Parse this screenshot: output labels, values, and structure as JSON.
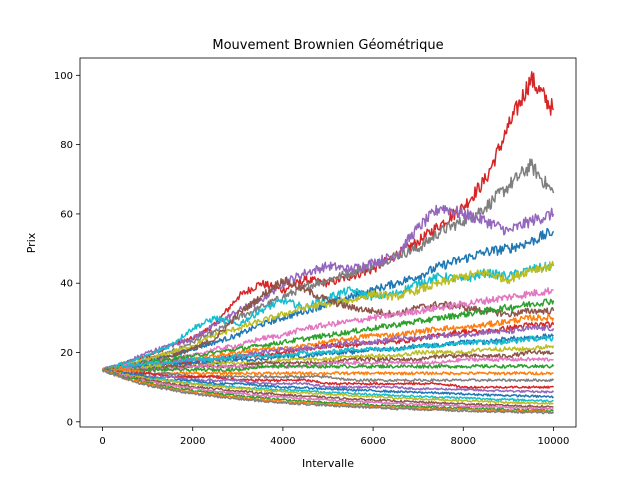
{
  "chart_data": {
    "type": "line",
    "title": "Mouvement Brownien Géométrique",
    "xlabel": "Intervalle",
    "ylabel": "Prix",
    "xlim": [
      -500,
      10500
    ],
    "ylim": [
      -1.5,
      105
    ],
    "grid": false,
    "legend": "none",
    "x_ticks": [
      0,
      2000,
      4000,
      6000,
      8000,
      10000
    ],
    "y_ticks": [
      0,
      20,
      40,
      60,
      80,
      100
    ],
    "x_tick_labels": [
      "0",
      "2000",
      "4000",
      "6000",
      "8000",
      "10000"
    ],
    "y_tick_labels": [
      "0",
      "20",
      "40",
      "60",
      "80",
      "100"
    ],
    "x": [
      0,
      500,
      1000,
      1500,
      2000,
      2500,
      3000,
      3500,
      4000,
      4500,
      5000,
      5500,
      6000,
      6500,
      7000,
      7500,
      8000,
      8500,
      9000,
      9500,
      10000
    ],
    "series": [
      {
        "color": "#d62728",
        "values": [
          15,
          17,
          19,
          22,
          24,
          28,
          36,
          40,
          38,
          41,
          40,
          42,
          44,
          48,
          52,
          57,
          62,
          70,
          85,
          99,
          90
        ]
      },
      {
        "color": "#7f7f7f",
        "values": [
          15,
          16,
          18,
          20,
          23,
          26,
          30,
          33,
          36,
          39,
          41,
          43,
          45,
          48,
          50,
          55,
          58,
          62,
          68,
          74,
          66
        ]
      },
      {
        "color": "#9467bd",
        "values": [
          15,
          17,
          20,
          22,
          24,
          28,
          32,
          35,
          40,
          43,
          45,
          44,
          46,
          48,
          56,
          62,
          60,
          58,
          55,
          58,
          60
        ]
      },
      {
        "color": "#1f77b4",
        "values": [
          15,
          16,
          18,
          19,
          21,
          23,
          25,
          28,
          30,
          32,
          34,
          36,
          38,
          40,
          42,
          45,
          47,
          49,
          50,
          52,
          55
        ]
      },
      {
        "color": "#17becf",
        "values": [
          15,
          17,
          19,
          22,
          27,
          30,
          28,
          32,
          35,
          33,
          36,
          38,
          36,
          37,
          40,
          42,
          41,
          43,
          42,
          44,
          45
        ]
      },
      {
        "color": "#bcbd22",
        "values": [
          15,
          16,
          18,
          20,
          22,
          25,
          27,
          29,
          31,
          33,
          34,
          35,
          37,
          36,
          38,
          40,
          42,
          43,
          41,
          44,
          45
        ]
      },
      {
        "color": "#8c564b",
        "values": [
          15,
          16,
          17,
          19,
          21,
          24,
          31,
          36,
          41,
          38,
          35,
          33,
          32,
          31,
          33,
          34,
          33,
          32,
          31,
          32,
          32
        ]
      },
      {
        "color": "#e377c2",
        "values": [
          15,
          16,
          17,
          18,
          19,
          21,
          22,
          24,
          25,
          27,
          28,
          29,
          30,
          31,
          32,
          33,
          34,
          35,
          36,
          37,
          38
        ]
      },
      {
        "color": "#2ca02c",
        "values": [
          15,
          16,
          17,
          18,
          19,
          20,
          21,
          22,
          23,
          24,
          25,
          26,
          27,
          28,
          29,
          30,
          31,
          32,
          33,
          34,
          35
        ]
      },
      {
        "color": "#ff7f0e",
        "values": [
          15,
          16,
          16,
          17,
          18,
          19,
          20,
          21,
          21,
          22,
          23,
          24,
          25,
          25,
          26,
          27,
          27,
          28,
          29,
          30,
          30
        ]
      },
      {
        "color": "#d62728",
        "values": [
          15,
          15,
          16,
          17,
          17,
          18,
          19,
          19,
          20,
          21,
          22,
          22,
          23,
          23,
          24,
          25,
          26,
          26,
          27,
          28,
          28
        ]
      },
      {
        "color": "#9467bd",
        "values": [
          15,
          16,
          16,
          17,
          18,
          18,
          19,
          20,
          21,
          21,
          22,
          23,
          23,
          24,
          24,
          25,
          25,
          26,
          26,
          27,
          27
        ]
      },
      {
        "color": "#1f77b4",
        "values": [
          15,
          15,
          16,
          16,
          17,
          17,
          18,
          18,
          19,
          19,
          20,
          20,
          21,
          21,
          22,
          22,
          23,
          23,
          24,
          24,
          25
        ]
      },
      {
        "color": "#17becf",
        "values": [
          15,
          16,
          17,
          17,
          18,
          18,
          19,
          19,
          19,
          20,
          20,
          21,
          21,
          21,
          22,
          22,
          23,
          23,
          23,
          24,
          24
        ]
      },
      {
        "color": "#bcbd22",
        "values": [
          15,
          15,
          16,
          16,
          16,
          17,
          17,
          17,
          18,
          18,
          18,
          19,
          19,
          19,
          20,
          20,
          20,
          21,
          21,
          21,
          22
        ]
      },
      {
        "color": "#8c564b",
        "values": [
          15,
          15,
          15,
          16,
          16,
          16,
          16,
          17,
          17,
          17,
          17,
          18,
          18,
          18,
          18,
          19,
          19,
          19,
          19,
          20,
          20
        ]
      },
      {
        "color": "#e377c2",
        "values": [
          15,
          15,
          15,
          15,
          16,
          16,
          16,
          16,
          16,
          16,
          17,
          17,
          17,
          17,
          17,
          17,
          18,
          18,
          18,
          18,
          18
        ]
      },
      {
        "color": "#2ca02c",
        "values": [
          15,
          15,
          15,
          15,
          15,
          15,
          15,
          16,
          16,
          16,
          16,
          16,
          16,
          16,
          16,
          16,
          16,
          16,
          16,
          16,
          16
        ]
      },
      {
        "color": "#ff7f0e",
        "values": [
          15,
          15,
          14,
          14,
          14,
          14,
          14,
          14,
          14,
          14,
          14,
          14,
          14,
          14,
          14,
          14,
          14,
          14,
          14,
          14,
          14
        ]
      },
      {
        "color": "#7f7f7f",
        "values": [
          15,
          14,
          14,
          14,
          13,
          13,
          13,
          13,
          13,
          13,
          13,
          12,
          12,
          12,
          12,
          12,
          12,
          12,
          12,
          12,
          12
        ]
      },
      {
        "color": "#d62728",
        "values": [
          15,
          14,
          14,
          13,
          13,
          13,
          12,
          12,
          12,
          12,
          11,
          11,
          11,
          11,
          11,
          11,
          10,
          10,
          10,
          10,
          10
        ]
      },
      {
        "color": "#9467bd",
        "values": [
          15,
          14,
          13,
          13,
          12,
          12,
          12,
          11,
          11,
          11,
          10,
          10,
          10,
          10,
          9.5,
          9.5,
          9.3,
          9.0,
          8.9,
          8.7,
          8.6
        ]
      },
      {
        "color": "#1f77b4",
        "values": [
          15,
          14,
          13,
          12,
          12,
          11,
          11,
          10.5,
          10,
          9.8,
          9.5,
          9.2,
          9,
          8.7,
          8.5,
          8.3,
          8,
          7.8,
          7.6,
          7.4,
          7.2
        ]
      },
      {
        "color": "#17becf",
        "values": [
          15,
          13.5,
          12.5,
          12,
          11,
          10.5,
          10,
          9.6,
          9.2,
          8.9,
          8.5,
          8.2,
          7.9,
          7.6,
          7.3,
          7.1,
          6.9,
          6.6,
          6.4,
          6.2,
          6.0
        ]
      },
      {
        "color": "#bcbd22",
        "values": [
          15,
          13.5,
          12.4,
          11.6,
          10.9,
          10.3,
          9.7,
          9.2,
          8.7,
          8.3,
          7.9,
          7.6,
          7.2,
          6.9,
          6.6,
          6.4,
          6.1,
          5.9,
          5.6,
          5.4,
          5.2
        ]
      },
      {
        "color": "#8c564b",
        "values": [
          15,
          13.2,
          12,
          11,
          10.2,
          9.5,
          8.9,
          8.3,
          7.8,
          7.4,
          7,
          6.6,
          6.3,
          6.0,
          5.7,
          5.4,
          5.2,
          4.9,
          4.7,
          4.5,
          4.3
        ]
      },
      {
        "color": "#e377c2",
        "values": [
          15,
          13,
          11.6,
          10.5,
          9.6,
          8.8,
          8.2,
          7.6,
          7.1,
          6.7,
          6.3,
          5.9,
          5.6,
          5.3,
          5.0,
          4.8,
          4.5,
          4.3,
          4.1,
          3.9,
          3.7
        ]
      },
      {
        "color": "#2ca02c",
        "values": [
          15,
          12.8,
          11.2,
          10,
          9,
          8.2,
          7.5,
          6.9,
          6.4,
          5.9,
          5.5,
          5.2,
          4.9,
          4.6,
          4.3,
          4.1,
          3.9,
          3.7,
          3.5,
          3.3,
          3.2
        ]
      },
      {
        "color": "#ff7f0e",
        "values": [
          15,
          12.5,
          10.8,
          9.5,
          8.5,
          7.7,
          7,
          6.4,
          5.9,
          5.5,
          5.1,
          4.7,
          4.4,
          4.1,
          3.9,
          3.7,
          3.5,
          3.3,
          3.1,
          3.0,
          2.8
        ]
      },
      {
        "color": "#7f7f7f",
        "values": [
          15,
          12.3,
          10.5,
          9.2,
          8.1,
          7.3,
          6.6,
          6.0,
          5.5,
          5.1,
          4.7,
          4.4,
          4.1,
          3.8,
          3.6,
          3.4,
          3.2,
          3.0,
          2.9,
          2.7,
          2.6
        ]
      }
    ]
  }
}
